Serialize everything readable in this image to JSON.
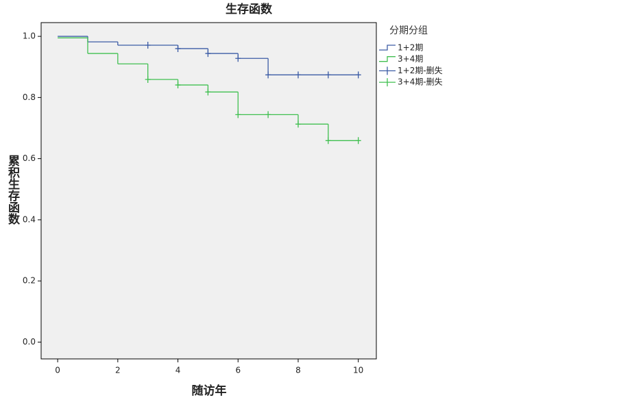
{
  "chart_data": {
    "type": "survival",
    "title": "生存函数",
    "xlabel": "随访年",
    "ylabel": "累积生存函数",
    "legend_title": "分期分组",
    "legend": "outside-right",
    "background": "#f0f0f0",
    "xlim": [
      -0.55,
      10.6
    ],
    "xticks": [
      0,
      2,
      4,
      6,
      8,
      10
    ],
    "ylim": [
      -0.055,
      1.045
    ],
    "yticks": [
      {
        "value": 0,
        "label": "0.0"
      },
      0.2,
      0.4,
      0.6,
      0.8,
      {
        "value": 1,
        "label": "1.0"
      }
    ],
    "series": [
      {
        "name": "1+2期",
        "kind": "step",
        "color": "#3b5ba5",
        "x": [
          0,
          1,
          2,
          3,
          4,
          5,
          6,
          7,
          8,
          9,
          10
        ],
        "values": [
          1.0,
          0.982,
          0.971,
          0.971,
          0.96,
          0.944,
          0.928,
          0.874,
          0.874,
          0.874,
          0.874
        ]
      },
      {
        "name": "3+4期",
        "kind": "step",
        "color": "#3fbf4f",
        "x": [
          0,
          1,
          2,
          3,
          4,
          5,
          6,
          7,
          8,
          9,
          10
        ],
        "values": [
          0.995,
          0.944,
          0.91,
          0.859,
          0.841,
          0.818,
          0.744,
          0.744,
          0.713,
          0.659,
          0.659
        ]
      },
      {
        "name": "1+2期-删失",
        "kind": "censor",
        "color": "#3b5ba5",
        "x": [
          3,
          4,
          5,
          6,
          7,
          8,
          9,
          10
        ],
        "values": [
          0.971,
          0.96,
          0.944,
          0.928,
          0.874,
          0.874,
          0.874,
          0.874
        ]
      },
      {
        "name": "3+4期-删失",
        "kind": "censor",
        "color": "#3fbf4f",
        "x": [
          3,
          4,
          5,
          6,
          7,
          8,
          9,
          10
        ],
        "values": [
          0.859,
          0.841,
          0.818,
          0.744,
          0.744,
          0.713,
          0.659,
          0.659
        ]
      }
    ]
  }
}
